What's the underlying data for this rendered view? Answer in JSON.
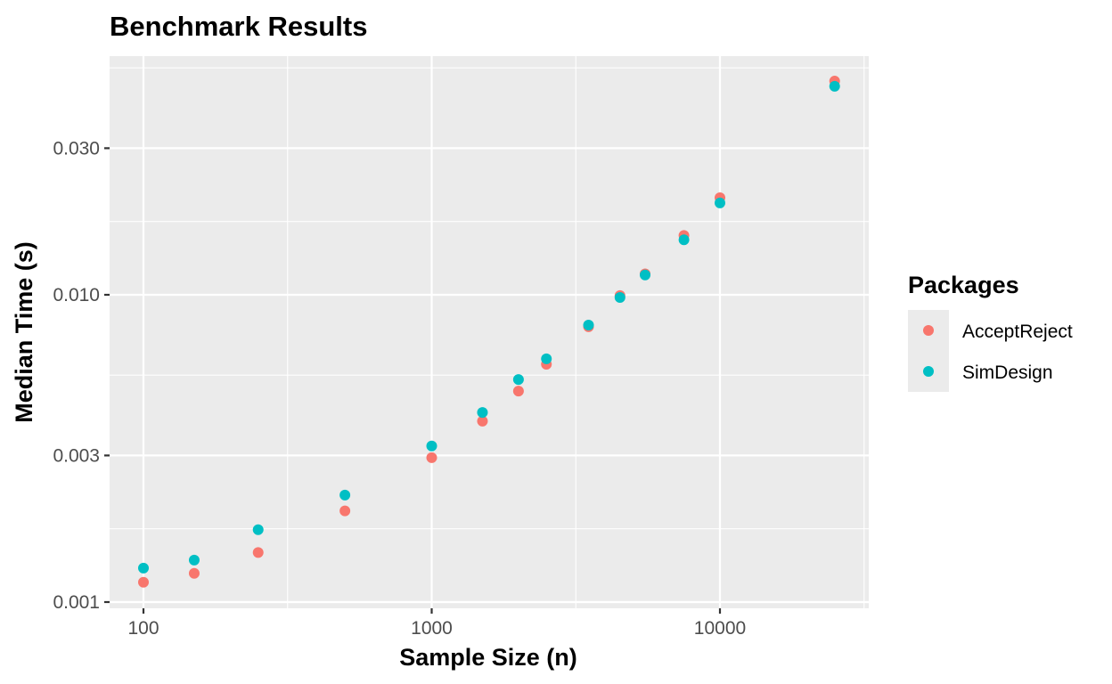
{
  "chart_data": {
    "type": "scatter",
    "title": "Benchmark Results",
    "xlabel": "Sample Size (n)",
    "ylabel": "Median Time (s)",
    "x_scale": "log10",
    "y_scale": "log10",
    "xlim": [
      85,
      31000
    ],
    "ylim": [
      0.00098,
      0.058
    ],
    "x_ticks": [
      100,
      1000,
      10000
    ],
    "x_tick_labels": [
      "100",
      "1000",
      "10000"
    ],
    "y_ticks": [
      0.001,
      0.003,
      0.01,
      0.03
    ],
    "y_tick_labels": [
      "0.001",
      "0.003",
      "0.010",
      "0.030"
    ],
    "grid": true,
    "legend_position": "right",
    "legend_title": "Packages",
    "x": [
      100,
      150,
      250,
      500,
      1000,
      1500,
      2000,
      2500,
      3500,
      4500,
      5500,
      7500,
      10000,
      25000
    ],
    "series": [
      {
        "name": "AcceptReject",
        "color": "#F8766D",
        "values": [
          0.00116,
          0.00124,
          0.00145,
          0.00198,
          0.00295,
          0.00388,
          0.00486,
          0.00594,
          0.00787,
          0.00994,
          0.0117,
          0.0156,
          0.0207,
          0.0496
        ]
      },
      {
        "name": "SimDesign",
        "color": "#00BFC4",
        "values": [
          0.00129,
          0.00137,
          0.00172,
          0.00223,
          0.00322,
          0.00414,
          0.0053,
          0.00619,
          0.00797,
          0.0098,
          0.0116,
          0.0151,
          0.0199,
          0.0477
        ]
      }
    ]
  },
  "colors": {
    "panel_background": "#EBEBEB",
    "grid_line": "#FFFFFF",
    "tick_text": "#4D4D4D"
  }
}
